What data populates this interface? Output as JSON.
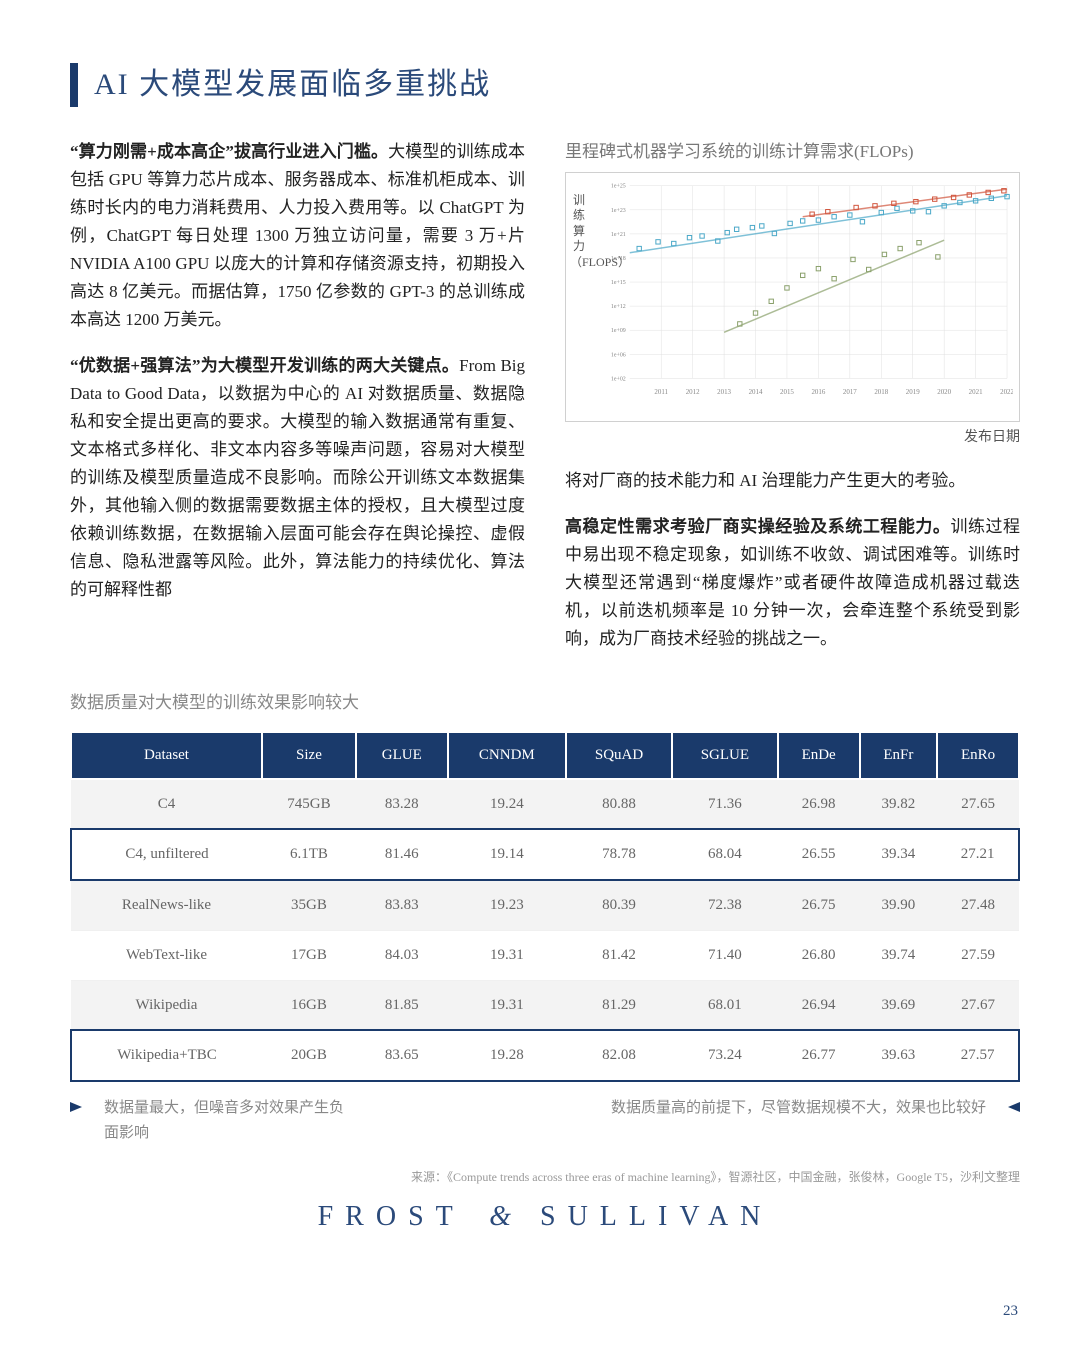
{
  "page": {
    "title": "AI 大模型发展面临多重挑战",
    "page_number": "23"
  },
  "paragraphs": {
    "p1_lead": "“算力刚需+成本高企”拔高行业进入门槛。",
    "p1_body": "大模型的训练成本包括 GPU 等算力芯片成本、服务器成本、标准机柜成本、训练时长内的电力消耗费用、人力投入费用等。以 ChatGPT 为例，ChatGPT 每日处理 1300 万独立访问量，需要 3 万+片 NVIDIA A100 GPU 以庞大的计算和存储资源支持，初期投入高达 8 亿美元。而据估算，1750 亿参数的 GPT-3 的总训练成本高达 1200 万美元。",
    "p2_lead": "“优数据+强算法”为大模型开发训练的两大关键点。",
    "p2_body": "From Big Data to Good Data，以数据为中心的 AI 对数据质量、数据隐私和安全提出更高的要求。大模型的输入数据通常有重复、文本格式多样化、非文本内容多等噪声问题，容易对大模型的训练及模型质量造成不良影响。而除公开训练文本数据集外，其他输入侧的数据需要数据主体的授权，且大模型过度依赖训练数据，在数据输入层面可能会存在舆论操控、虚假信息、隐私泄露等风险。此外，算法能力的持续优化、算法的可解释性都",
    "p3_right": "将对厂商的技术能力和 AI 治理能力产生更大的考验。",
    "p4_lead": "高稳定性需求考验厂商实操经验及系统工程能力。",
    "p4_body": "训练过程中易出现不稳定现象，如训练不收敛、调试困难等。训练时大模型还常遇到“梯度爆炸”或者硬件故障造成机器过载迭机，以前迭机频率是 10 分钟一次，会牵连整个系统受到影响，成为厂商技术经验的挑战之一。"
  },
  "chart": {
    "title": "里程碑式机器学习系统的训练计算需求(FLOPs)",
    "ylabel": "训练算力（FLOPS）",
    "xlabel": "发布日期",
    "type": "scatter",
    "background_color": "#ffffff",
    "grid_color": "#e0e0e0",
    "xlim": [
      2010,
      2022
    ],
    "ylim_log10": [
      2,
      25
    ],
    "x_ticks": [
      "2011",
      "2012",
      "2013",
      "2014",
      "2015",
      "2016",
      "2017",
      "2018",
      "2019",
      "2020",
      "2021",
      "2022"
    ],
    "y_tick_labels": [
      "1e+02",
      "1e+06",
      "1e+09",
      "1e+12",
      "1e+15",
      "1e+18",
      "1e+21",
      "1e+23",
      "1e+25"
    ],
    "series": [
      {
        "color": "#4aa8c8",
        "points": [
          [
            2010.3,
            17.5
          ],
          [
            2010.9,
            18.3
          ],
          [
            2011.4,
            18.1
          ],
          [
            2011.9,
            18.8
          ],
          [
            2012.3,
            19.0
          ],
          [
            2012.8,
            18.4
          ],
          [
            2013.1,
            19.4
          ],
          [
            2013.4,
            19.8
          ],
          [
            2013.9,
            20.0
          ],
          [
            2014.2,
            20.2
          ],
          [
            2014.6,
            19.3
          ],
          [
            2015.1,
            20.5
          ],
          [
            2015.5,
            20.8
          ],
          [
            2016.0,
            20.9
          ],
          [
            2016.5,
            21.3
          ],
          [
            2017.0,
            21.5
          ],
          [
            2017.4,
            20.7
          ],
          [
            2018.0,
            21.8
          ],
          [
            2018.5,
            22.3
          ],
          [
            2019.0,
            22.0
          ],
          [
            2019.5,
            21.9
          ],
          [
            2020.0,
            22.6
          ],
          [
            2020.5,
            23.0
          ],
          [
            2021.0,
            23.2
          ],
          [
            2021.5,
            23.5
          ],
          [
            2022.0,
            23.7
          ]
        ]
      },
      {
        "color": "#d1553d",
        "points": [
          [
            2015.8,
            21.6
          ],
          [
            2016.3,
            21.9
          ],
          [
            2017.2,
            22.4
          ],
          [
            2017.8,
            22.6
          ],
          [
            2018.4,
            22.9
          ],
          [
            2019.1,
            23.1
          ],
          [
            2019.7,
            23.4
          ],
          [
            2020.3,
            23.6
          ],
          [
            2020.8,
            23.9
          ],
          [
            2021.4,
            24.2
          ],
          [
            2021.9,
            24.4
          ]
        ]
      },
      {
        "color": "#8aa06b",
        "points": [
          [
            2013.5,
            8.5
          ],
          [
            2014.0,
            9.8
          ],
          [
            2014.5,
            11.2
          ],
          [
            2015.0,
            12.8
          ],
          [
            2015.5,
            14.3
          ],
          [
            2016.0,
            15.1
          ],
          [
            2016.5,
            13.9
          ],
          [
            2017.1,
            16.2
          ],
          [
            2017.6,
            15.0
          ],
          [
            2018.1,
            16.8
          ],
          [
            2018.6,
            17.5
          ],
          [
            2019.2,
            18.2
          ],
          [
            2019.8,
            16.5
          ]
        ]
      }
    ],
    "regression_lines": [
      {
        "color": "#4aa8c8",
        "from": [
          2010,
          17.0
        ],
        "to": [
          2022,
          23.8
        ]
      },
      {
        "color": "#d1553d",
        "from": [
          2015.5,
          21.3
        ],
        "to": [
          2022,
          24.6
        ]
      },
      {
        "color": "#8aa06b",
        "from": [
          2013,
          7.5
        ],
        "to": [
          2020,
          18.5
        ]
      }
    ]
  },
  "table": {
    "caption": "数据质量对大模型的训练效果影响较大",
    "columns": [
      "Dataset",
      "Size",
      "GLUE",
      "CNNDM",
      "SQuAD",
      "SGLUE",
      "EnDe",
      "EnFr",
      "EnRo"
    ],
    "rows": [
      {
        "cells": [
          "C4",
          "745GB",
          "83.28",
          "19.24",
          "80.88",
          "71.36",
          "26.98",
          "39.82",
          "27.65"
        ],
        "highlight": false
      },
      {
        "cells": [
          "C4, unfiltered",
          "6.1TB",
          "81.46",
          "19.14",
          "78.78",
          "68.04",
          "26.55",
          "39.34",
          "27.21"
        ],
        "highlight": true
      },
      {
        "cells": [
          "RealNews-like",
          "35GB",
          "83.83",
          "19.23",
          "80.39",
          "72.38",
          "26.75",
          "39.90",
          "27.48"
        ],
        "highlight": false
      },
      {
        "cells": [
          "WebText-like",
          "17GB",
          "84.03",
          "19.31",
          "81.42",
          "71.40",
          "26.80",
          "39.74",
          "27.59"
        ],
        "highlight": false
      },
      {
        "cells": [
          "Wikipedia",
          "16GB",
          "81.85",
          "19.31",
          "81.29",
          "68.01",
          "26.94",
          "39.69",
          "27.67"
        ],
        "highlight": false
      },
      {
        "cells": [
          "Wikipedia+TBC",
          "20GB",
          "83.65",
          "19.28",
          "82.08",
          "73.24",
          "26.77",
          "39.63",
          "27.57"
        ],
        "highlight": true
      }
    ],
    "header_bg": "#1a3a6b",
    "header_fg": "#ffffff",
    "row_odd_bg": "#f3f3f3",
    "row_even_bg": "#ffffff",
    "highlight_border": "#1a3a6b"
  },
  "callouts": {
    "left": "数据量最大，但噪音多对效果产生负面影响",
    "right": "数据质量高的前提下，尽管数据规模不大，效果也比较好"
  },
  "source": "来源：《Compute trends across three eras of machine learning》，智源社区，中国金融，张俊林，Google T5，沙利文整理",
  "footer": {
    "brand_left": "FROST",
    "brand_amp": "&",
    "brand_right": "SULLIVAN"
  },
  "colors": {
    "accent": "#1a3a6b",
    "title_fg": "#2b4a7a",
    "muted": "#888888"
  }
}
